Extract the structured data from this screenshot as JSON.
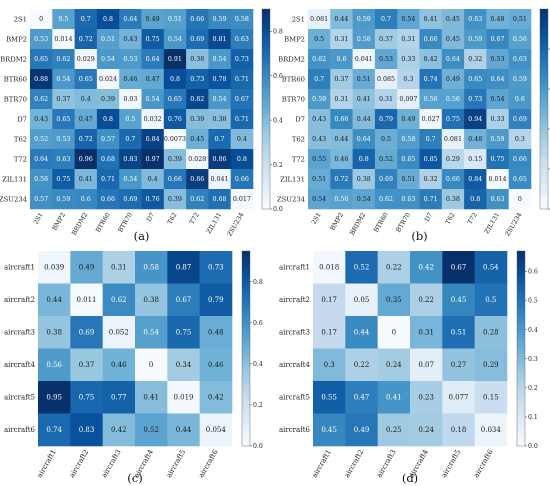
{
  "chart_data": [
    {
      "type": "heatmap",
      "panel_label": "(a)",
      "rows": [
        "2S1",
        "BMP2",
        "BRDM2",
        "BTR60",
        "BTR70",
        "D7",
        "T62",
        "T72",
        "ZIL131",
        "ZSU234"
      ],
      "cols": [
        "2S1",
        "BMP2",
        "BRDM2",
        "BTR60",
        "BTR70",
        "D7",
        "T62",
        "T72",
        "ZIL131",
        "ZSU234"
      ],
      "values": [
        [
          0,
          0.5,
          0.7,
          0.8,
          0.64,
          0.49,
          0.51,
          0.66,
          0.59,
          0.58
        ],
        [
          0.53,
          0.014,
          0.72,
          0.51,
          0.43,
          0.75,
          0.54,
          0.69,
          0.81,
          0.63
        ],
        [
          0.65,
          0.62,
          0.029,
          0.54,
          0.53,
          0.64,
          0.91,
          0.38,
          0.54,
          0.73
        ],
        [
          0.88,
          0.54,
          0.65,
          0.024,
          0.46,
          0.47,
          0.8,
          0.73,
          0.78,
          0.71
        ],
        [
          0.62,
          0.37,
          0.4,
          0.39,
          0.03,
          0.54,
          0.65,
          0.82,
          0.54,
          0.67
        ],
        [
          0.43,
          0.65,
          0.47,
          0.8,
          0.5,
          0.032,
          0.76,
          0.39,
          0.38,
          0.71
        ],
        [
          0.52,
          0.53,
          0.72,
          0.57,
          0.7,
          0.84,
          0.0073,
          0.45,
          0.7,
          0.4
        ],
        [
          0.64,
          0.63,
          0.96,
          0.68,
          0.83,
          0.97,
          0.39,
          0.028,
          0.86,
          0.8
        ],
        [
          0.56,
          0.75,
          0.41,
          0.71,
          0.54,
          0.4,
          0.66,
          0.86,
          0.041,
          0.66
        ],
        [
          0.57,
          0.59,
          0.6,
          0.66,
          0.69,
          0.76,
          0.39,
          0.62,
          0.68,
          0.017
        ]
      ],
      "colorbar": {
        "range": [
          0,
          0.9
        ],
        "ticks": [
          0.0,
          0.2,
          0.4,
          0.6,
          0.8
        ]
      },
      "colormap": "Blues"
    },
    {
      "type": "heatmap",
      "panel_label": "(b)",
      "rows": [
        "2S1",
        "BMP2",
        "BRDM2",
        "BTR60",
        "BTR70",
        "D7",
        "T62",
        "T72",
        "ZIL131",
        "ZSU234"
      ],
      "cols": [
        "2S1",
        "BMP2",
        "BRDM2",
        "BTR60",
        "BTR70",
        "D7",
        "T62",
        "T72",
        "ZIL131",
        "ZSU234"
      ],
      "values": [
        [
          0.081,
          0.44,
          0.59,
          0.7,
          0.54,
          0.41,
          0.45,
          0.63,
          0.48,
          0.51
        ],
        [
          0.5,
          0.31,
          0.58,
          0.37,
          0.31,
          0.66,
          0.45,
          0.59,
          0.67,
          0.56
        ],
        [
          0.62,
          0.6,
          0.041,
          0.53,
          0.33,
          0.42,
          0.64,
          0.32,
          0.53,
          0.63
        ],
        [
          0.7,
          0.37,
          0.51,
          0.085,
          0.3,
          0.74,
          0.49,
          0.65,
          0.64,
          0.59
        ],
        [
          0.59,
          0.31,
          0.41,
          0.31,
          0.097,
          0.56,
          0.56,
          0.73,
          0.54,
          0.6
        ],
        [
          0.43,
          0.66,
          0.44,
          0.79,
          0.49,
          0.027,
          0.75,
          0.94,
          0.33,
          0.69
        ],
        [
          0.43,
          0.44,
          0.64,
          0.5,
          0.58,
          0.7,
          0.081,
          0.48,
          0.59,
          0.3
        ],
        [
          0.55,
          0.46,
          0.8,
          0.52,
          0.65,
          0.85,
          0.29,
          0.15,
          0.75,
          0.66
        ],
        [
          0.51,
          0.72,
          0.38,
          0.69,
          0.51,
          0.32,
          0.66,
          0.84,
          0.014,
          0.65
        ],
        [
          0.54,
          0.56,
          0.54,
          0.62,
          0.63,
          0.71,
          0.38,
          0.8,
          0.63,
          0
        ]
      ],
      "colorbar": {
        "range": [
          0,
          1.0
        ],
        "ticks": [
          0.0,
          0.2,
          0.4,
          0.6,
          0.8
        ]
      },
      "colormap": "Blues"
    },
    {
      "type": "heatmap",
      "panel_label": "(c)",
      "rows": [
        "aircraft1",
        "aircraft2",
        "aircraft3",
        "aircraft4",
        "aircraft5",
        "aircraft6"
      ],
      "cols": [
        "aircraft1",
        "aircraft2",
        "aircraft3",
        "aircraft4",
        "aircraft5",
        "aircraft6"
      ],
      "values": [
        [
          0.039,
          0.49,
          0.31,
          0.58,
          0.87,
          0.73
        ],
        [
          0.44,
          0.011,
          0.62,
          0.38,
          0.67,
          0.79
        ],
        [
          0.38,
          0.69,
          0.052,
          0.54,
          0.75,
          0.48
        ],
        [
          0.56,
          0.37,
          0.46,
          0,
          0.34,
          0.46
        ],
        [
          0.95,
          0.75,
          0.77,
          0.41,
          0.019,
          0.42
        ],
        [
          0.74,
          0.83,
          0.42,
          0.52,
          0.44,
          0.054
        ]
      ],
      "colorbar": {
        "range": [
          0,
          0.95
        ],
        "ticks": [
          0.0,
          0.2,
          0.4,
          0.6,
          0.8
        ]
      },
      "colormap": "Blues"
    },
    {
      "type": "heatmap",
      "panel_label": "(d)",
      "rows": [
        "aircraft1",
        "aircraft2",
        "aircraft3",
        "aircraft4",
        "aircraft5",
        "aircraft6"
      ],
      "cols": [
        "aircraft1",
        "aircraft2",
        "aircraft3",
        "aircraft4",
        "aircraft5",
        "aircraft6"
      ],
      "values": [
        [
          0.018,
          0.52,
          0.22,
          0.42,
          0.67,
          0.54
        ],
        [
          0.17,
          0.05,
          0.35,
          0.22,
          0.45,
          0.5
        ],
        [
          0.17,
          0.44,
          0,
          0.31,
          0.51,
          0.28
        ],
        [
          0.3,
          0.22,
          0.24,
          0.07,
          0.27,
          0.29
        ],
        [
          0.55,
          0.47,
          0.41,
          0.23,
          0.077,
          0.15
        ],
        [
          0.45,
          0.49,
          0.25,
          0.24,
          0.18,
          0.034
        ]
      ],
      "colorbar": {
        "range": [
          0,
          0.67
        ],
        "ticks": [
          0.0,
          0.1,
          0.2,
          0.3,
          0.4,
          0.5,
          0.6
        ]
      },
      "colormap": "Blues"
    }
  ]
}
